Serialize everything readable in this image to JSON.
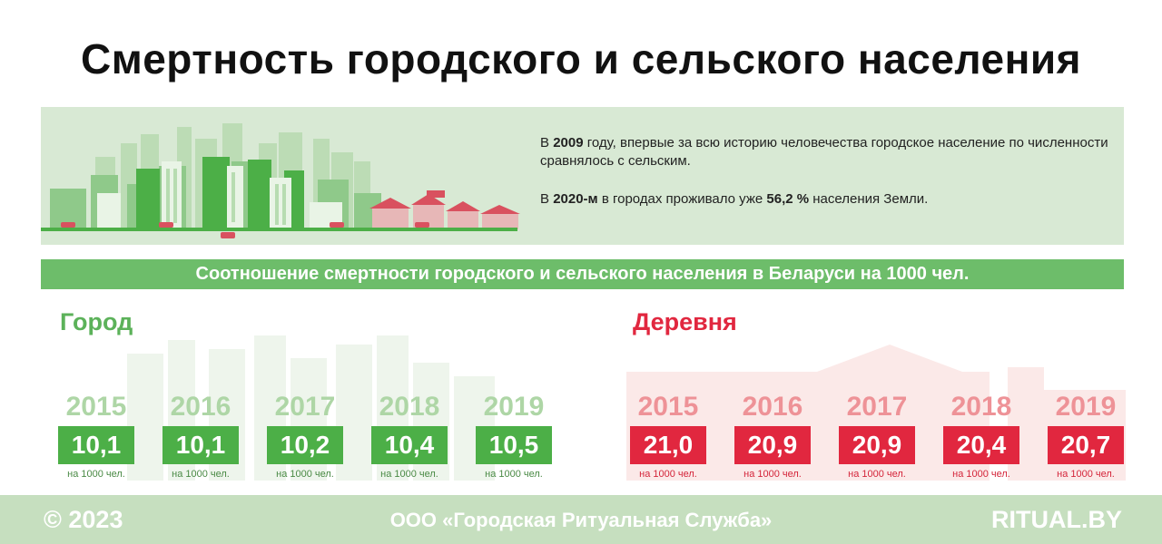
{
  "title": "Смертность городского и сельского населения",
  "banner": {
    "p1": {
      "pre": "В ",
      "year": "2009",
      "post": " году, впервые за всю историю человечества городское население по численности сравнялось с сельским."
    },
    "p2": {
      "pre": "В ",
      "year": "2020-м",
      "mid": " в городах проживало уже ",
      "pct": "56,2 %",
      "post": " населения Земли."
    }
  },
  "subheader": "Соотношение смертности городского и сельского населения в Беларуси на 1000 чел.",
  "city": {
    "label": "Город",
    "items": [
      {
        "year": "2015",
        "value": "10,1",
        "unit": "на 1000 чел."
      },
      {
        "year": "2016",
        "value": "10,1",
        "unit": "на 1000 чел."
      },
      {
        "year": "2017",
        "value": "10,2",
        "unit": "на 1000 чел."
      },
      {
        "year": "2018",
        "value": "10,4",
        "unit": "на 1000 чел."
      },
      {
        "year": "2019",
        "value": "10,5",
        "unit": "на 1000 чел."
      }
    ]
  },
  "village": {
    "label": "Деревня",
    "items": [
      {
        "year": "2015",
        "value": "21,0",
        "unit": "на 1000 чел."
      },
      {
        "year": "2016",
        "value": "20,9",
        "unit": "на 1000 чел."
      },
      {
        "year": "2017",
        "value": "20,9",
        "unit": "на 1000 чел."
      },
      {
        "year": "2018",
        "value": "20,4",
        "unit": "на 1000 чел."
      },
      {
        "year": "2019",
        "value": "20,7",
        "unit": "на 1000 чел."
      }
    ]
  },
  "footer": {
    "copyright": "© 2023",
    "company": "ООО «Городская Ритуальная Служба»",
    "site": "RITUAL.BY"
  },
  "colors": {
    "city_green": "#4caf47",
    "village_red": "#e1273f",
    "banner_bg": "#d8e9d4",
    "subheader_bg": "#6dbd6a",
    "footer_bg": "#c6dfbf"
  }
}
